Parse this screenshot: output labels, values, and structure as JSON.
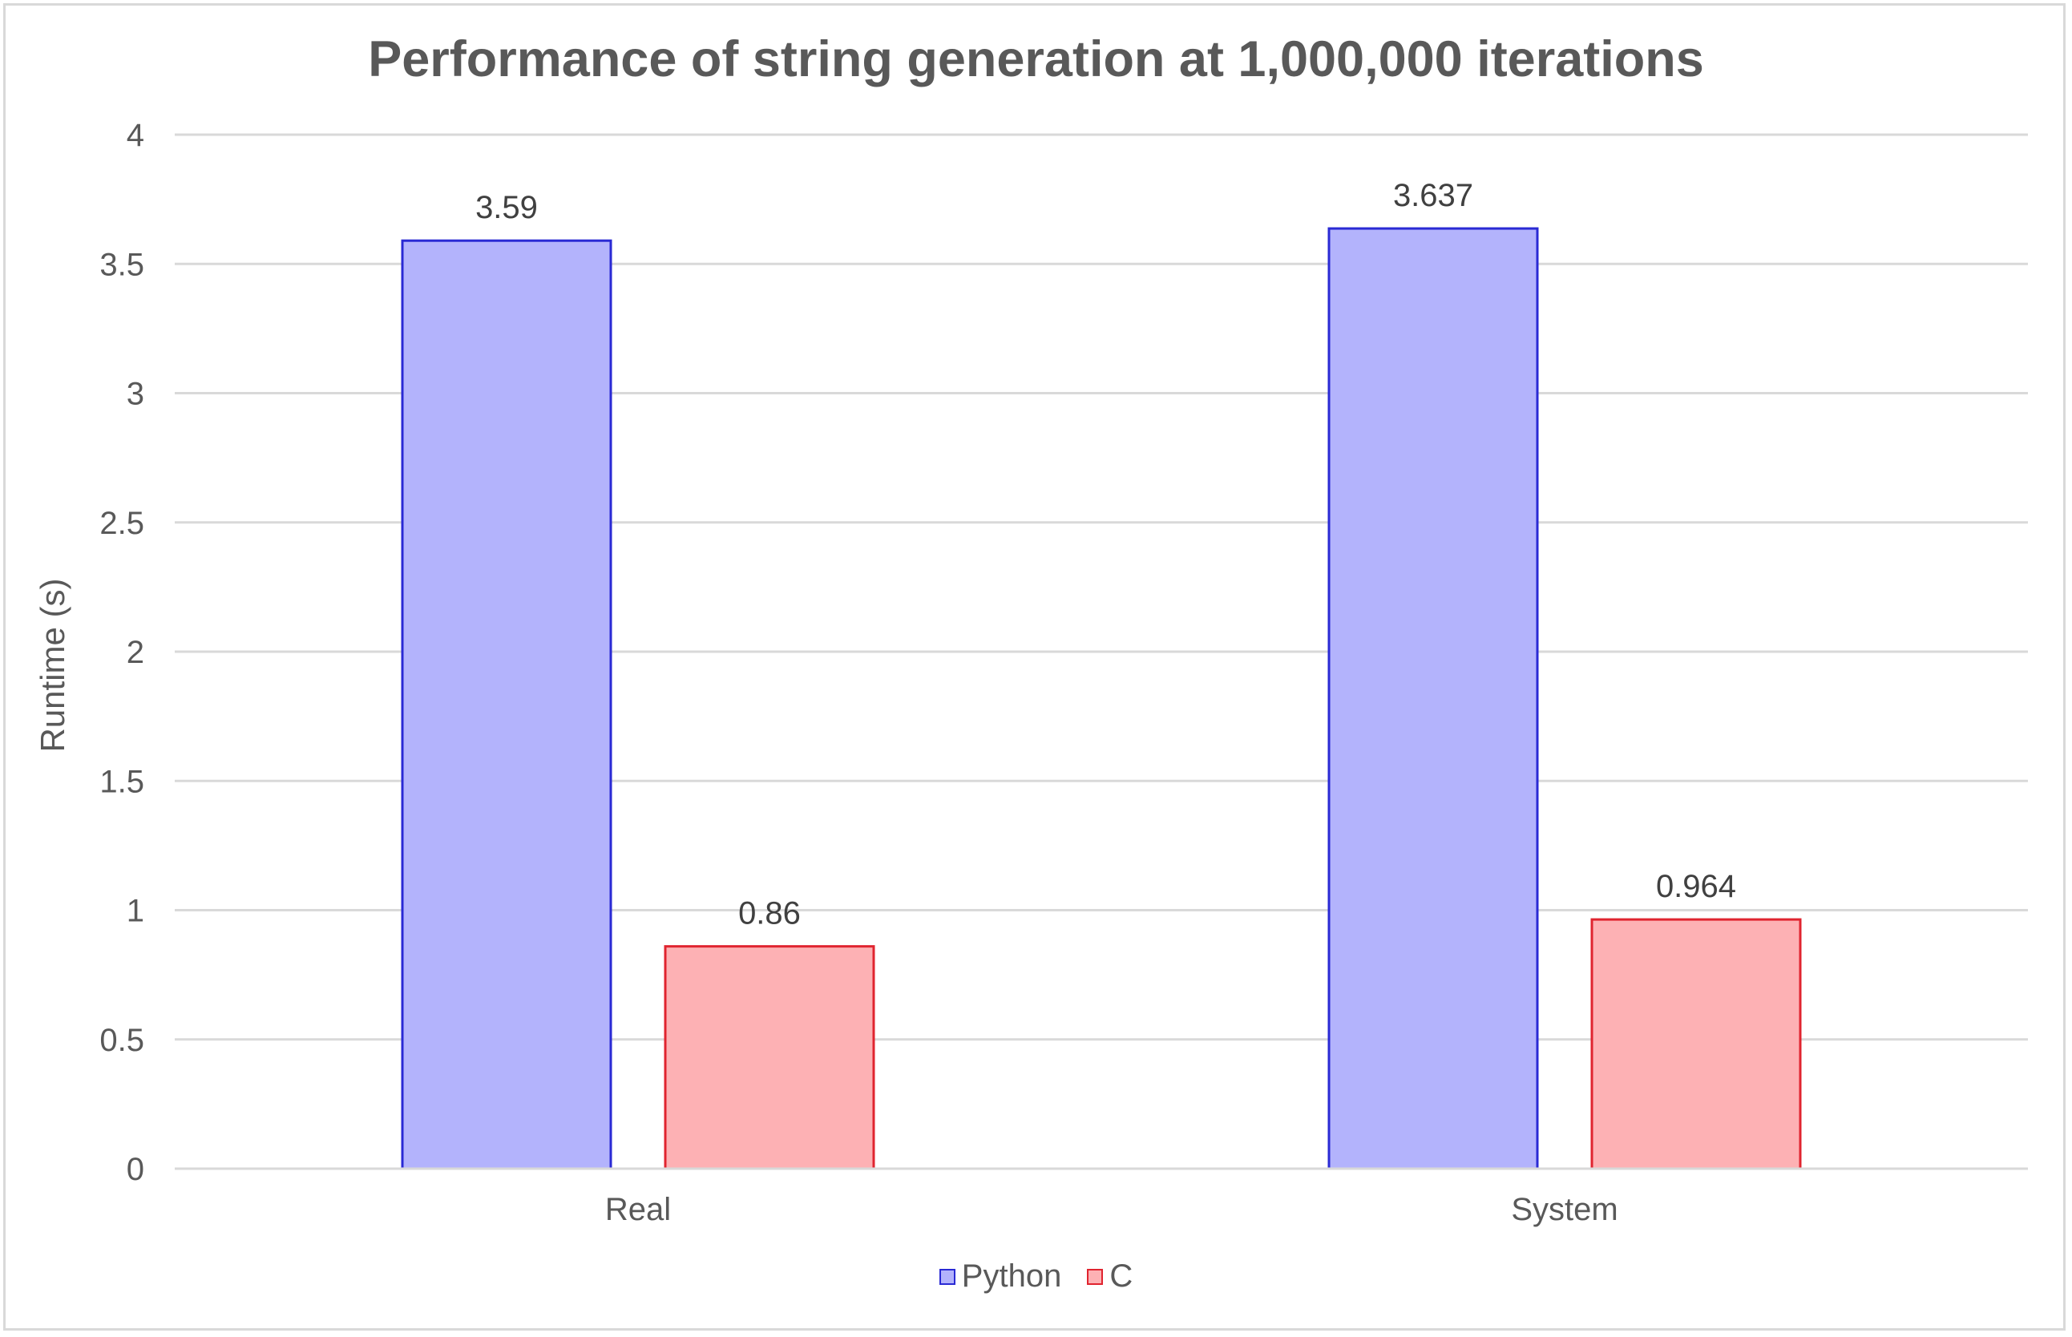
{
  "chart_data": {
    "type": "bar",
    "title": "Performance of string generation at 1,000,000 iterations",
    "ylabel": "Runtime (s)",
    "xlabel": "",
    "categories": [
      "Real",
      "System"
    ],
    "series": [
      {
        "name": "Python",
        "values": [
          3.59,
          3.637
        ],
        "labels": [
          "3.59",
          "3.637"
        ],
        "fill": "#b3b3fc",
        "stroke": "#2a2ad4"
      },
      {
        "name": "C",
        "values": [
          0.86,
          0.964
        ],
        "labels": [
          "0.86",
          "0.964"
        ],
        "fill": "#fdb1b4",
        "stroke": "#e0242f"
      }
    ],
    "ylim": [
      0,
      4
    ],
    "yticks": [
      0,
      0.5,
      1,
      1.5,
      2,
      2.5,
      3,
      3.5,
      4
    ],
    "ytick_labels": [
      "0",
      "0.5",
      "1",
      "1.5",
      "2",
      "2.5",
      "3",
      "3.5",
      "4"
    ],
    "grid": true,
    "legend_position": "bottom"
  }
}
